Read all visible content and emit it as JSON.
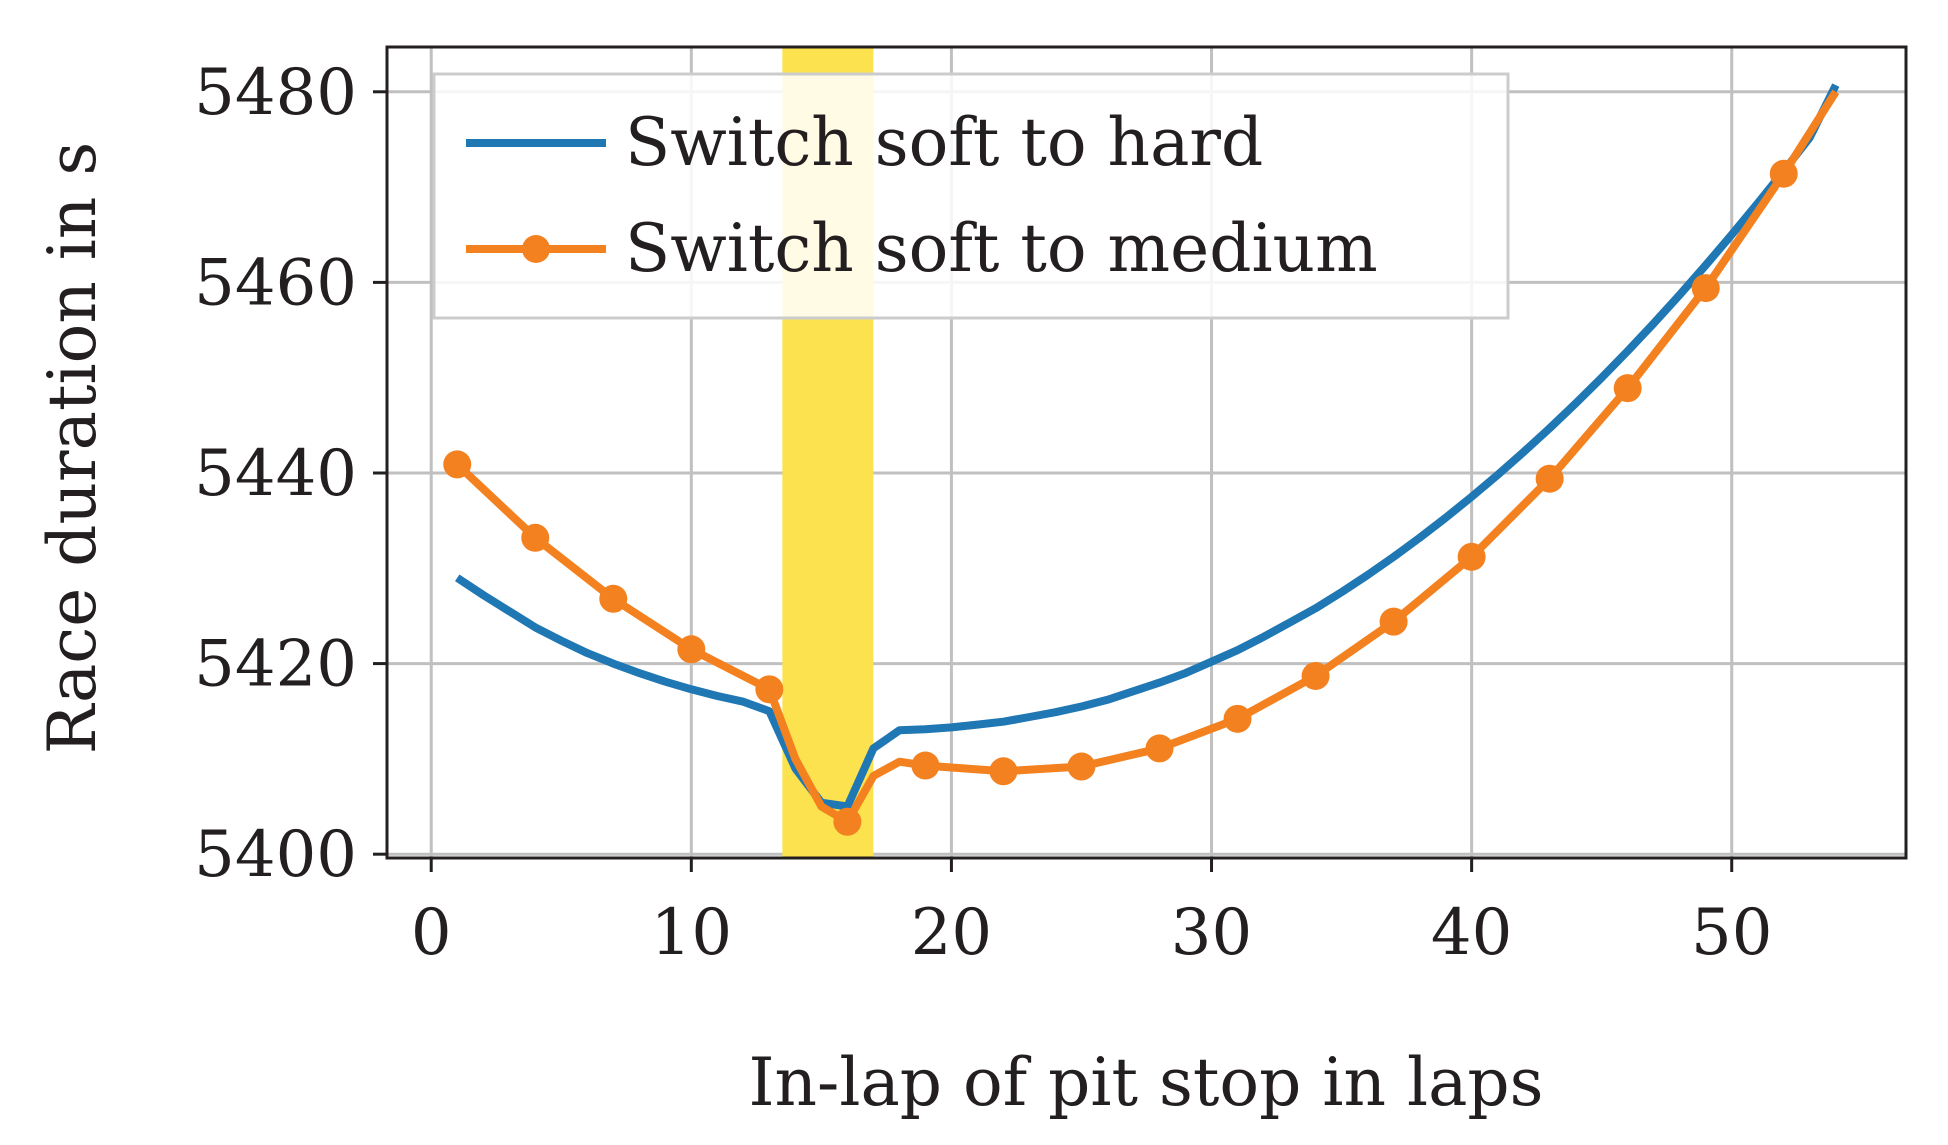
{
  "chart_data": {
    "type": "line",
    "xlabel": "In-lap of pit stop in laps",
    "ylabel": "Race duration in s",
    "xlim": [
      -1.7,
      56.7
    ],
    "ylim": [
      5399.6,
      5484.7
    ],
    "xticks": [
      0,
      10,
      20,
      30,
      40,
      50
    ],
    "yticks": [
      5400,
      5420,
      5440,
      5460,
      5480
    ],
    "grid": true,
    "legend_position": "top-left",
    "highlight_band": {
      "x_start": 13.5,
      "x_end": 17,
      "color": "#fde24f"
    },
    "series": [
      {
        "name": "Switch soft to hard",
        "color": "#1f77b4",
        "marker": "none",
        "x": [
          1,
          2,
          3,
          4,
          5,
          6,
          7,
          8,
          9,
          10,
          11,
          12,
          13,
          14,
          15,
          16,
          17,
          18,
          19,
          20,
          21,
          22,
          23,
          24,
          25,
          26,
          27,
          28,
          29,
          30,
          31,
          32,
          33,
          34,
          35,
          36,
          37,
          38,
          39,
          40,
          41,
          42,
          43,
          44,
          45,
          46,
          47,
          48,
          49,
          50,
          51,
          52,
          53,
          54
        ],
        "values": [
          5429.0,
          5427.2,
          5425.5,
          5423.8,
          5422.4,
          5421.1,
          5420.0,
          5419.0,
          5418.1,
          5417.3,
          5416.6,
          5416.0,
          5415.0,
          5409.0,
          5405.4,
          5405.0,
          5411.1,
          5413.0,
          5413.1,
          5413.3,
          5413.6,
          5413.9,
          5414.4,
          5414.9,
          5415.5,
          5416.2,
          5417.1,
          5418.0,
          5419.0,
          5420.2,
          5421.4,
          5422.8,
          5424.3,
          5425.8,
          5427.5,
          5429.3,
          5431.2,
          5433.2,
          5435.3,
          5437.5,
          5439.8,
          5442.2,
          5444.7,
          5447.3,
          5450.0,
          5452.8,
          5455.7,
          5458.7,
          5461.8,
          5465.0,
          5468.3,
          5471.7,
          5475.2,
          5480.7
        ]
      },
      {
        "name": "Switch soft to medium",
        "color": "#f4811f",
        "marker": "circle",
        "x": [
          1,
          4,
          7,
          10,
          13,
          14,
          15,
          16,
          17,
          18,
          19,
          22,
          25,
          28,
          31,
          34,
          37,
          40,
          43,
          46,
          49,
          52,
          54
        ],
        "values": [
          5440.9,
          5433.2,
          5426.8,
          5421.5,
          5417.3,
          5410.0,
          5405.0,
          5403.4,
          5408.2,
          5409.7,
          5409.3,
          5408.7,
          5409.2,
          5411.1,
          5414.2,
          5418.7,
          5424.4,
          5431.2,
          5439.4,
          5448.9,
          5459.4,
          5471.4,
          5480.0
        ],
        "marked_x": [
          1,
          4,
          7,
          10,
          13,
          16,
          19,
          22,
          25,
          28,
          31,
          34,
          37,
          40,
          43,
          46,
          49,
          52
        ]
      }
    ]
  }
}
